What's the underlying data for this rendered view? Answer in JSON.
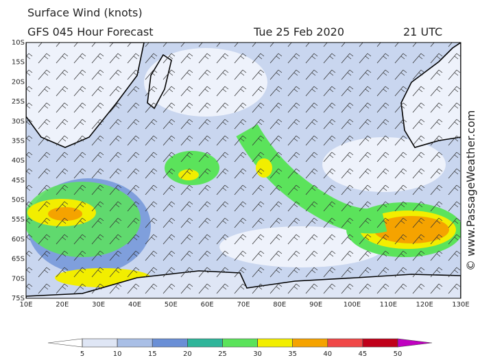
{
  "header": {
    "title": "Surface Wind (knots)",
    "model": "GFS 045 Hour Forecast",
    "date": "Tue 25 Feb 2020",
    "time": "21 UTC"
  },
  "map": {
    "lat_labels": [
      "10S",
      "15S",
      "20S",
      "25S",
      "30S",
      "35S",
      "40S",
      "45S",
      "50S",
      "55S",
      "60S",
      "65S",
      "70S",
      "75S"
    ],
    "lon_labels": [
      "10E",
      "20E",
      "30E",
      "40E",
      "50E",
      "60E",
      "70E",
      "80E",
      "90E",
      "100E",
      "110E",
      "120E",
      "130E"
    ]
  },
  "legend": {
    "levels": [
      5,
      10,
      15,
      20,
      25,
      30,
      35,
      40,
      45,
      50
    ],
    "colors": [
      "#ffffff",
      "#dfe6f5",
      "#a9bfe6",
      "#6a8fd6",
      "#2fb59a",
      "#5be35b",
      "#f2ee00",
      "#f5a300",
      "#f04848",
      "#c0001a",
      "#c000c0"
    ]
  },
  "credit": "© www.PassageWeather.com"
}
